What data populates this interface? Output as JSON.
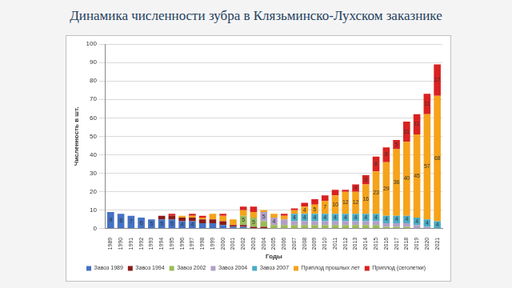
{
  "chart_data": {
    "type": "bar",
    "title": "Динамика численности зубра в Клязьминско-Лухском заказнике",
    "x_label": "Годы",
    "y_label": "Численность в шт.",
    "categories": [
      "1989",
      "1990",
      "1991",
      "1992",
      "1993",
      "1994",
      "1995",
      "1996",
      "1997",
      "1998",
      "1999",
      "2000",
      "2001",
      "2002",
      "2003",
      "2004",
      "2005",
      "2006",
      "2007",
      "2008",
      "2009",
      "2010",
      "2011",
      "2012",
      "2013",
      "2014",
      "2015",
      "2016",
      "2017",
      "2018",
      "2019",
      "2020",
      "2021"
    ],
    "series": [
      {
        "name": "Завоз 1989",
        "color": "#4472c4",
        "values": [
          9,
          8,
          7,
          6,
          5,
          5,
          5,
          4,
          4,
          3,
          3,
          2,
          1,
          1,
          null,
          null,
          null,
          null,
          null,
          null,
          null,
          null,
          null,
          null,
          null,
          null,
          null,
          null,
          null,
          null,
          null,
          null,
          null
        ]
      },
      {
        "name": "Завоз 1994",
        "color": "#8b1a1a",
        "values": [
          null,
          null,
          null,
          null,
          null,
          2,
          2,
          2,
          2,
          2,
          2,
          2,
          1,
          1,
          1,
          1,
          null,
          null,
          null,
          null,
          null,
          null,
          null,
          null,
          null,
          null,
          null,
          null,
          null,
          null,
          null,
          null,
          null
        ]
      },
      {
        "name": "Завоз 2002",
        "color": "#9bbb59",
        "values": [
          null,
          null,
          null,
          null,
          null,
          null,
          null,
          null,
          null,
          null,
          null,
          null,
          null,
          5,
          5,
          3,
          2,
          2,
          2,
          2,
          2,
          2,
          2,
          2,
          2,
          2,
          2,
          1,
          1,
          1,
          null,
          null,
          null
        ]
      },
      {
        "name": "Завоз 2004",
        "color": "#b1a0c7",
        "values": [
          null,
          null,
          null,
          null,
          null,
          null,
          null,
          null,
          null,
          null,
          null,
          null,
          null,
          null,
          null,
          5,
          4,
          3,
          2,
          2,
          2,
          2,
          2,
          2,
          2,
          2,
          2,
          2,
          2,
          2,
          2,
          1,
          null
        ]
      },
      {
        "name": "Завоз 2007",
        "color": "#4bacc6",
        "values": [
          null,
          null,
          null,
          null,
          null,
          null,
          null,
          null,
          null,
          null,
          null,
          null,
          null,
          null,
          null,
          null,
          null,
          null,
          4,
          4,
          4,
          4,
          4,
          4,
          4,
          4,
          4,
          4,
          4,
          4,
          4,
          4,
          4
        ]
      },
      {
        "name": "Приплод прошлых лет",
        "color": "#f5a31a",
        "values": [
          null,
          null,
          null,
          null,
          null,
          null,
          null,
          1,
          1,
          1,
          3,
          3,
          3,
          3,
          3,
          1,
          2,
          2,
          2,
          4,
          5,
          7,
          10,
          12,
          12,
          16,
          23,
          29,
          36,
          40,
          45,
          57,
          68
        ]
      },
      {
        "name": "Приплод (сеголетки)",
        "color": "#d92121",
        "values": [
          null,
          null,
          null,
          null,
          null,
          null,
          1,
          null,
          1,
          1,
          null,
          1,
          null,
          2,
          3,
          null,
          null,
          1,
          1,
          2,
          3,
          3,
          3,
          1,
          4,
          5,
          8,
          8,
          5,
          11,
          11,
          11,
          17
        ]
      }
    ],
    "stacked": true,
    "data_labels": true,
    "legend": "bottom",
    "grid": true,
    "ylim": [
      0,
      100
    ],
    "yticks": [
      0,
      10,
      20,
      30,
      40,
      50,
      60,
      70,
      80,
      90,
      100
    ]
  }
}
